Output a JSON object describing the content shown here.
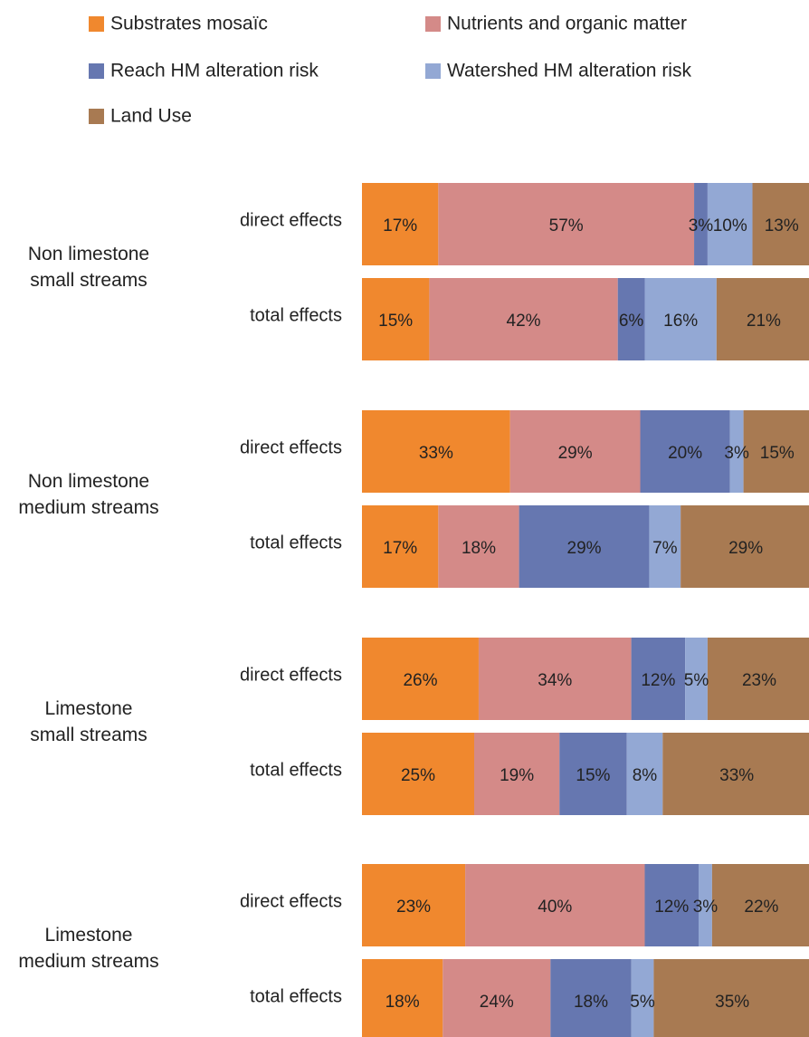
{
  "chart_data": {
    "type": "bar",
    "orientation": "horizontal",
    "stacked": true,
    "normalized": "percent",
    "legend_position": "top",
    "grid": false,
    "series": [
      {
        "name": "Substrates mosaïc",
        "color": "#f0882e"
      },
      {
        "name": "Nutrients and organic matter",
        "color": "#d48a88"
      },
      {
        "name": "Reach HM alteration risk",
        "color": "#6677b0"
      },
      {
        "name": "Watershed HM alteration risk",
        "color": "#93a8d4"
      },
      {
        "name": "Land Use",
        "color": "#a87a52"
      }
    ],
    "groups": [
      {
        "label_lines": [
          "Non limestone",
          "small streams"
        ],
        "rows": [
          {
            "label": "direct effects",
            "values": [
              17,
              57,
              3,
              10,
              13
            ],
            "value_labels": [
              "17%",
              "57%",
              "3%",
              "10%",
              "13%"
            ]
          },
          {
            "label": "total effects",
            "values": [
              15,
              42,
              6,
              16,
              21
            ],
            "value_labels": [
              "15%",
              "42%",
              "6%",
              "16%",
              "21%"
            ]
          }
        ]
      },
      {
        "label_lines": [
          "Non limestone",
          "medium streams"
        ],
        "rows": [
          {
            "label": "direct effects",
            "values": [
              33,
              29,
              20,
              3,
              15
            ],
            "value_labels": [
              "33%",
              "29%",
              "20%",
              "3%",
              "15%"
            ]
          },
          {
            "label": "total effects",
            "values": [
              17,
              18,
              29,
              7,
              29
            ],
            "value_labels": [
              "17%",
              "18%",
              "29%",
              "7%",
              "29%"
            ]
          }
        ]
      },
      {
        "label_lines": [
          "Limestone",
          "small streams"
        ],
        "rows": [
          {
            "label": "direct effects",
            "values": [
              26,
              34,
              12,
              5,
              23
            ],
            "value_labels": [
              "26%",
              "34%",
              "12%",
              "5%",
              "23%"
            ]
          },
          {
            "label": "total effects",
            "values": [
              25,
              19,
              15,
              8,
              33
            ],
            "value_labels": [
              "25%",
              "19%",
              "15%",
              "8%",
              "33%"
            ]
          }
        ]
      },
      {
        "label_lines": [
          "Limestone",
          "medium streams"
        ],
        "rows": [
          {
            "label": "direct effects",
            "values": [
              23,
              40,
              12,
              3,
              22
            ],
            "value_labels": [
              "23%",
              "40%",
              "12%",
              "3%",
              "22%"
            ]
          },
          {
            "label": "total effects",
            "values": [
              18,
              24,
              18,
              5,
              35
            ],
            "value_labels": [
              "18%",
              "24%",
              "18%",
              "5%",
              "35%"
            ]
          }
        ]
      }
    ],
    "xlim": [
      0,
      100
    ]
  }
}
